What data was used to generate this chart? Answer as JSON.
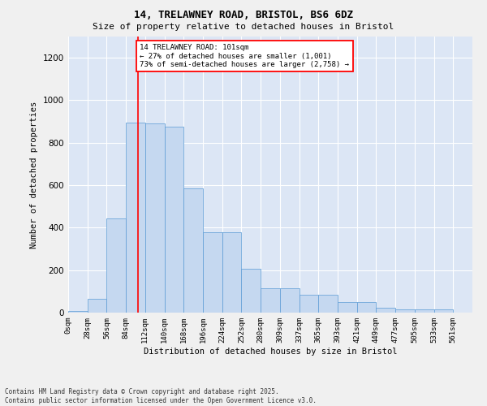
{
  "title1": "14, TRELAWNEY ROAD, BRISTOL, BS6 6DZ",
  "title2": "Size of property relative to detached houses in Bristol",
  "xlabel": "Distribution of detached houses by size in Bristol",
  "ylabel": "Number of detached properties",
  "bar_color": "#c5d8f0",
  "bar_edge_color": "#5b9bd5",
  "background_color": "#dce6f5",
  "grid_color": "#ffffff",
  "bin_labels": [
    "0sqm",
    "28sqm",
    "56sqm",
    "84sqm",
    "112sqm",
    "140sqm",
    "168sqm",
    "196sqm",
    "224sqm",
    "252sqm",
    "280sqm",
    "309sqm",
    "337sqm",
    "365sqm",
    "393sqm",
    "421sqm",
    "449sqm",
    "477sqm",
    "505sqm",
    "533sqm",
    "561sqm"
  ],
  "bar_values": [
    7,
    65,
    445,
    895,
    890,
    875,
    585,
    380,
    380,
    205,
    115,
    115,
    85,
    85,
    50,
    50,
    22,
    15,
    15,
    15,
    0
  ],
  "red_line_x": 101,
  "bin_width": 28,
  "ylim": [
    0,
    1300
  ],
  "yticks": [
    0,
    200,
    400,
    600,
    800,
    1000,
    1200
  ],
  "annotation_text": "14 TRELAWNEY ROAD: 101sqm\n← 27% of detached houses are smaller (1,001)\n73% of semi-detached houses are larger (2,758) →",
  "footer_line1": "Contains HM Land Registry data © Crown copyright and database right 2025.",
  "footer_line2": "Contains public sector information licensed under the Open Government Licence v3.0."
}
